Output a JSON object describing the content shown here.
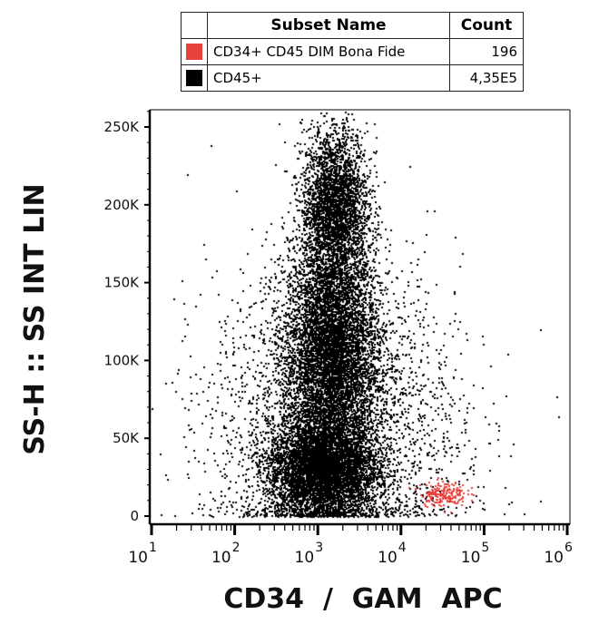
{
  "legend": {
    "headers": [
      "Subset Name",
      "Count"
    ],
    "rows": [
      {
        "name": "CD34+ CD45 DIM Bona Fide",
        "count": "196",
        "color": "#e8403a"
      },
      {
        "name": "CD45+",
        "count": "4,35E5",
        "color": "#000000"
      }
    ]
  },
  "chart_data": {
    "type": "scatter",
    "xlabel": "CD34  /  GAM  APC",
    "ylabel": "SS-H :: SS INT LIN",
    "x_scale": "log",
    "xlim": [
      10,
      1000000
    ],
    "ylim": [
      0,
      262144
    ],
    "y_ticks": [
      {
        "value": 0,
        "label": "0"
      },
      {
        "value": 50000,
        "label": "50K"
      },
      {
        "value": 100000,
        "label": "100K"
      },
      {
        "value": 150000,
        "label": "150K"
      },
      {
        "value": 200000,
        "label": "200K"
      },
      {
        "value": 250000,
        "label": "250K"
      }
    ],
    "x_ticks": [
      {
        "value": 10,
        "base": "10",
        "exp": "1"
      },
      {
        "value": 100,
        "base": "10",
        "exp": "2"
      },
      {
        "value": 1000,
        "base": "10",
        "exp": "3"
      },
      {
        "value": 10000,
        "base": "10",
        "exp": "4"
      },
      {
        "value": 100000,
        "base": "10",
        "exp": "5"
      },
      {
        "value": 1000000,
        "base": "10",
        "exp": "6"
      }
    ],
    "series": [
      {
        "name": "CD45+",
        "color": "#000000",
        "count": 435000,
        "clusters": [
          {
            "x_log10_mean": 3.15,
            "x_log10_sd": 0.28,
            "y_mean": 105000,
            "y_sd": 38000,
            "weight": 0.46
          },
          {
            "x_log10_mean": 3.05,
            "x_log10_sd": 0.33,
            "y_mean": 30000,
            "y_sd": 15000,
            "weight": 0.44
          },
          {
            "x_log10_mean": 3.2,
            "x_log10_sd": 0.2,
            "y_mean": 200000,
            "y_sd": 25000,
            "weight": 0.05
          },
          {
            "x_log10_mean": 3.2,
            "x_log10_sd": 0.75,
            "y_mean": 60000,
            "y_sd": 50000,
            "weight": 0.05
          }
        ]
      },
      {
        "name": "CD34+ CD45 DIM Bona Fide",
        "color": "#e8403a",
        "count": 196,
        "clusters": [
          {
            "x_log10_mean": 4.5,
            "x_log10_sd": 0.14,
            "y_mean": 15000,
            "y_sd": 4000,
            "weight": 1.0
          }
        ]
      }
    ]
  }
}
